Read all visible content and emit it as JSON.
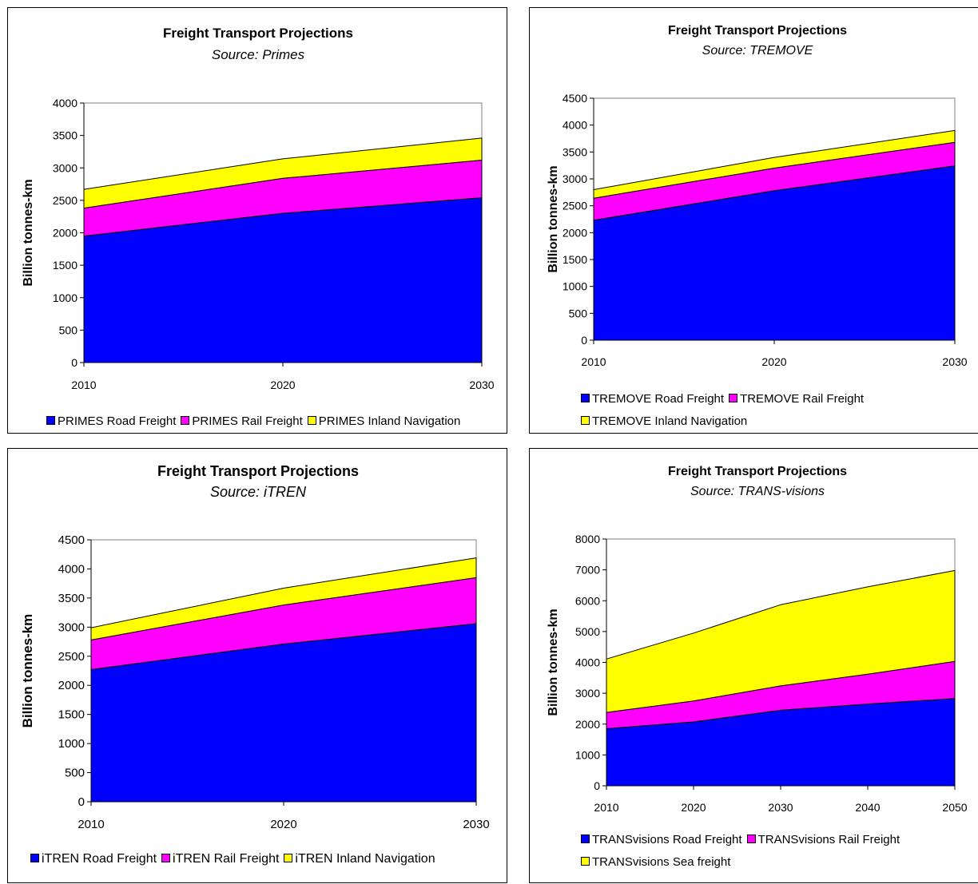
{
  "chart_data": [
    {
      "type": "area",
      "stacked": true,
      "title": "Freight Transport Projections",
      "subtitle": "Source: Primes",
      "ylabel": "Billion tonnes-km",
      "xlabel": "",
      "x": [
        2010,
        2020,
        2030
      ],
      "ylim": [
        0,
        4000
      ],
      "ytick_step": 500,
      "legend_position": "bottom",
      "series": [
        {
          "name": "PRIMES Road Freight",
          "color": "#0000ff",
          "values": [
            1950,
            2300,
            2540
          ]
        },
        {
          "name": "PRIMES Rail Freight",
          "color": "#ff00ff",
          "values": [
            430,
            540,
            580
          ]
        },
        {
          "name": "PRIMES Inland Navigation",
          "color": "#ffff00",
          "values": [
            290,
            300,
            340
          ]
        }
      ]
    },
    {
      "type": "area",
      "stacked": true,
      "title": "Freight Transport Projections",
      "subtitle": "Source: TREMOVE",
      "ylabel": "Billion tonnes-km",
      "xlabel": "",
      "x": [
        2010,
        2020,
        2030
      ],
      "ylim": [
        0,
        4500
      ],
      "ytick_step": 500,
      "legend_position": "bottom",
      "series": [
        {
          "name": "TREMOVE Road Freight",
          "color": "#0000ff",
          "values": [
            2230,
            2780,
            3240
          ]
        },
        {
          "name": "TREMOVE  Rail Freight",
          "color": "#ff00ff",
          "values": [
            410,
            420,
            440
          ]
        },
        {
          "name": "TREMOVE Inland Navigation",
          "color": "#ffff00",
          "values": [
            160,
            200,
            220
          ]
        }
      ]
    },
    {
      "type": "area",
      "stacked": true,
      "title": "Freight Transport Projections",
      "subtitle": "Source: iTREN",
      "ylabel": "Billion tonnes-km",
      "xlabel": "",
      "x": [
        2010,
        2020,
        2030
      ],
      "ylim": [
        0,
        4500
      ],
      "ytick_step": 500,
      "legend_position": "bottom",
      "series": [
        {
          "name": "iTREN Road Freight",
          "color": "#0000ff",
          "values": [
            2270,
            2710,
            3060
          ]
        },
        {
          "name": "iTREN Rail Freight",
          "color": "#ff00ff",
          "values": [
            510,
            670,
            790
          ]
        },
        {
          "name": "iTREN Inland Navigation",
          "color": "#ffff00",
          "values": [
            210,
            290,
            340
          ]
        }
      ]
    },
    {
      "type": "area",
      "stacked": true,
      "title": "Freight Transport Projections",
      "subtitle": "Source: TRANS-visions",
      "ylabel": "Billion tonnes-km",
      "xlabel": "",
      "x": [
        2010,
        2020,
        2030,
        2040,
        2050
      ],
      "ylim": [
        0,
        8000
      ],
      "ytick_step": 1000,
      "legend_position": "bottom",
      "series": [
        {
          "name": "TRANSvisions Road Freight",
          "color": "#0000ff",
          "values": [
            1850,
            2070,
            2450,
            2650,
            2830
          ]
        },
        {
          "name": "TRANSvisions Rail Freight",
          "color": "#ff00ff",
          "values": [
            530,
            680,
            790,
            970,
            1200
          ]
        },
        {
          "name": "TRANSvisions Sea freight",
          "color": "#ffff00",
          "values": [
            1730,
            2200,
            2630,
            2830,
            2950
          ]
        }
      ]
    }
  ]
}
